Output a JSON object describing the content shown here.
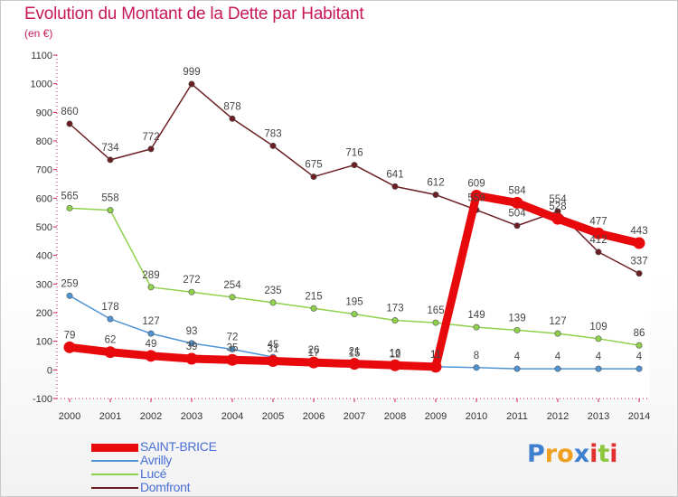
{
  "title": "Evolution du Montant de la Dette par Habitant",
  "subtitle": "(en €)",
  "logo": {
    "text": "Proxiti",
    "letters": [
      {
        "ch": "P",
        "color": "#3f7fd0"
      },
      {
        "ch": "r",
        "color": "#f0a020"
      },
      {
        "ch": "o",
        "color": "#f0a020"
      },
      {
        "ch": "x",
        "color": "#3f7fd0"
      },
      {
        "ch": "i",
        "color": "#e23030"
      },
      {
        "ch": "t",
        "color": "#8cc63f"
      },
      {
        "ch": "i",
        "color": "#e23030"
      }
    ]
  },
  "chart_data": {
    "type": "line",
    "title": "Evolution du Montant de la Dette par Habitant",
    "subtitle": "(en €)",
    "x": [
      "2000",
      "2001",
      "2002",
      "2003",
      "2004",
      "2005",
      "2006",
      "2007",
      "2008",
      "2009",
      "2010",
      "2011",
      "2012",
      "2013",
      "2014"
    ],
    "yticks": [
      "-100",
      "0",
      "100",
      "200",
      "300",
      "400",
      "500",
      "600",
      "700",
      "800",
      "900",
      "1000",
      "1100"
    ],
    "ylim": [
      -100,
      1100
    ],
    "grid": false,
    "legend_position": "bottom-left",
    "series": [
      {
        "name": "SAINT-BRICE",
        "color": "#e8090c",
        "width": 9,
        "values": [
          79,
          62,
          49,
          39,
          35,
          31,
          26,
          21,
          16,
          11,
          609,
          584,
          528,
          477,
          443
        ],
        "labels": [
          "79",
          "62",
          "49",
          "39",
          "35",
          "31",
          "26",
          "21",
          "16",
          "11",
          "609",
          "584",
          "528",
          "477",
          "443"
        ]
      },
      {
        "name": "Avrilly",
        "color": "#4f93d4",
        "width": 1.5,
        "values": [
          259,
          178,
          127,
          93,
          72,
          45,
          17,
          15,
          12,
          11,
          8,
          4,
          4,
          4,
          4
        ],
        "labels": [
          "259",
          "178",
          "127",
          "93",
          "72",
          "45",
          "17",
          "15",
          "12",
          "11",
          "8",
          "4",
          "4",
          "4",
          "4"
        ]
      },
      {
        "name": "Lucé",
        "color": "#8ed14a",
        "width": 1.5,
        "values": [
          565,
          558,
          289,
          272,
          254,
          235,
          215,
          195,
          173,
          165,
          149,
          139,
          127,
          109,
          86
        ],
        "labels": [
          "565",
          "558",
          "289",
          "272",
          "254",
          "235",
          "215",
          "195",
          "173",
          "165",
          "149",
          "139",
          "127",
          "109",
          "86"
        ]
      },
      {
        "name": "Domfront",
        "color": "#6b1f23",
        "width": 1.5,
        "values": [
          860,
          734,
          772,
          999,
          878,
          783,
          675,
          716,
          641,
          612,
          559,
          504,
          554,
          412,
          337
        ],
        "labels": [
          "860",
          "734",
          "772",
          "999",
          "878",
          "783",
          "675",
          "716",
          "641",
          "612",
          "559",
          "504",
          "554",
          "412",
          "337"
        ]
      }
    ]
  }
}
